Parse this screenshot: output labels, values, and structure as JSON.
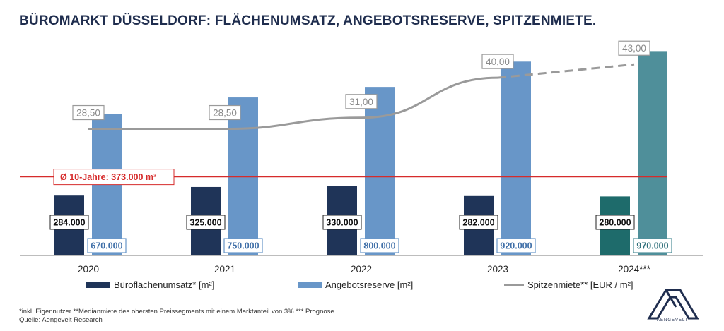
{
  "title": "BÜROMARKT DÜSSELDORF: FLÄCHENUMSATZ, ANGEBOTSRESERVE, SPITZENMIETE.",
  "chart_data": {
    "type": "bar",
    "categories": [
      "2020",
      "2021",
      "2022",
      "2023",
      "2024***"
    ],
    "series": [
      {
        "name": "Büroflächenumsatz* [m²]",
        "type": "bar",
        "values": [
          284000,
          325000,
          330000,
          282000,
          280000
        ],
        "labels": [
          "284.000",
          "325.000",
          "330.000",
          "282.000",
          "280.000"
        ],
        "color": "#1f3458",
        "forecast_color": "#1e6b6b"
      },
      {
        "name": "Angebotsreserve [m²]",
        "type": "bar",
        "values": [
          670000,
          750000,
          800000,
          920000,
          970000
        ],
        "labels": [
          "670.000",
          "750.000",
          "800.000",
          "920.000",
          "970.000"
        ],
        "color": "#6896c8",
        "forecast_color": "#4f8f9a"
      },
      {
        "name": "Spitzenmiete** [EUR / m²]",
        "type": "line",
        "values": [
          28.5,
          28.5,
          31.0,
          40.0,
          43.0
        ],
        "labels": [
          "28,50",
          "28,50",
          "31,00",
          "40,00",
          "43,00"
        ],
        "color": "#9a9a9a",
        "forecast_from_index": 3
      }
    ],
    "reference_line": {
      "label": "Ø 10-Jahre: 373.000 m²",
      "value": 373000,
      "color": "#d62b2b"
    },
    "ylim_m2": [
      0,
      1065000
    ],
    "ylim_rent": [
      0,
      50.5
    ],
    "legend_position": "bottom",
    "grid": false
  },
  "footnote": {
    "line1": "*inkl. Eigennutzer **Medianmiete des obersten Preissegments mit einem Marktanteil von 3% *** Prognose",
    "line2": "Quelle: Aengevelt Research"
  },
  "logo": {
    "icon": "aengevelt-logo-icon",
    "text": "AENGEVELT",
    "color": "#1f2d4e"
  }
}
